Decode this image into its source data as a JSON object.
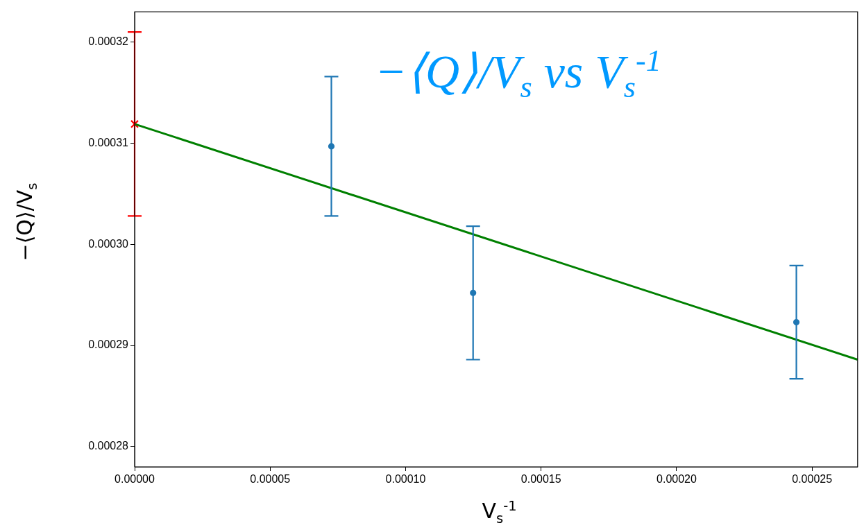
{
  "chart_data": {
    "type": "scatter",
    "title": "−⟨Q⟩/V$_{s}$ vs V$_{s}$$^{-1}$",
    "xlabel": "V$_{s}$$^{-1}$",
    "ylabel": "−⟨Q⟩/V$_{s}$",
    "series": [
      {
        "type": "line",
        "color": "#008000",
        "x": [
          0,
          0.0002668
        ],
        "values": [
          0.0003119,
          0.0002886
        ],
        "marker": "none"
      },
      {
        "color": "#ff0000",
        "x": [
          0
        ],
        "values": [
          0.0003119
        ],
        "errors": [
          9.1e-06
        ],
        "marker": "cross"
      },
      {
        "color": "#1f77b4",
        "x": [
          7.26e-05,
          0.0001249,
          0.0002442
        ],
        "values": [
          0.0003097,
          0.0002952,
          0.0002923
        ],
        "errors": [
          6.9e-06,
          6.6e-06,
          5.6e-06
        ],
        "marker": "circle"
      }
    ],
    "xlim": [
      0,
      0.0002668
    ],
    "xticks": [
      {
        "value": 0,
        "label": "0.00000"
      },
      {
        "value": 5e-05,
        "label": "0.00005"
      },
      {
        "value": 0.0001,
        "label": "0.00010"
      },
      {
        "value": 0.00015,
        "label": "0.00015"
      },
      {
        "value": 0.0002,
        "label": "0.00020"
      },
      {
        "value": 0.00025,
        "label": "0.00025"
      }
    ],
    "ylim": [
      0.000278,
      0.000323
    ],
    "yticks": [
      {
        "value": 0.00028,
        "label": "0.00028"
      },
      {
        "value": 0.00029,
        "label": "0.00029"
      },
      {
        "value": 0.0003,
        "label": "0.00030"
      },
      {
        "value": 0.00031,
        "label": "0.00031"
      },
      {
        "value": 0.00032,
        "label": "0.00032"
      }
    ],
    "grid": false,
    "legend": false
  }
}
